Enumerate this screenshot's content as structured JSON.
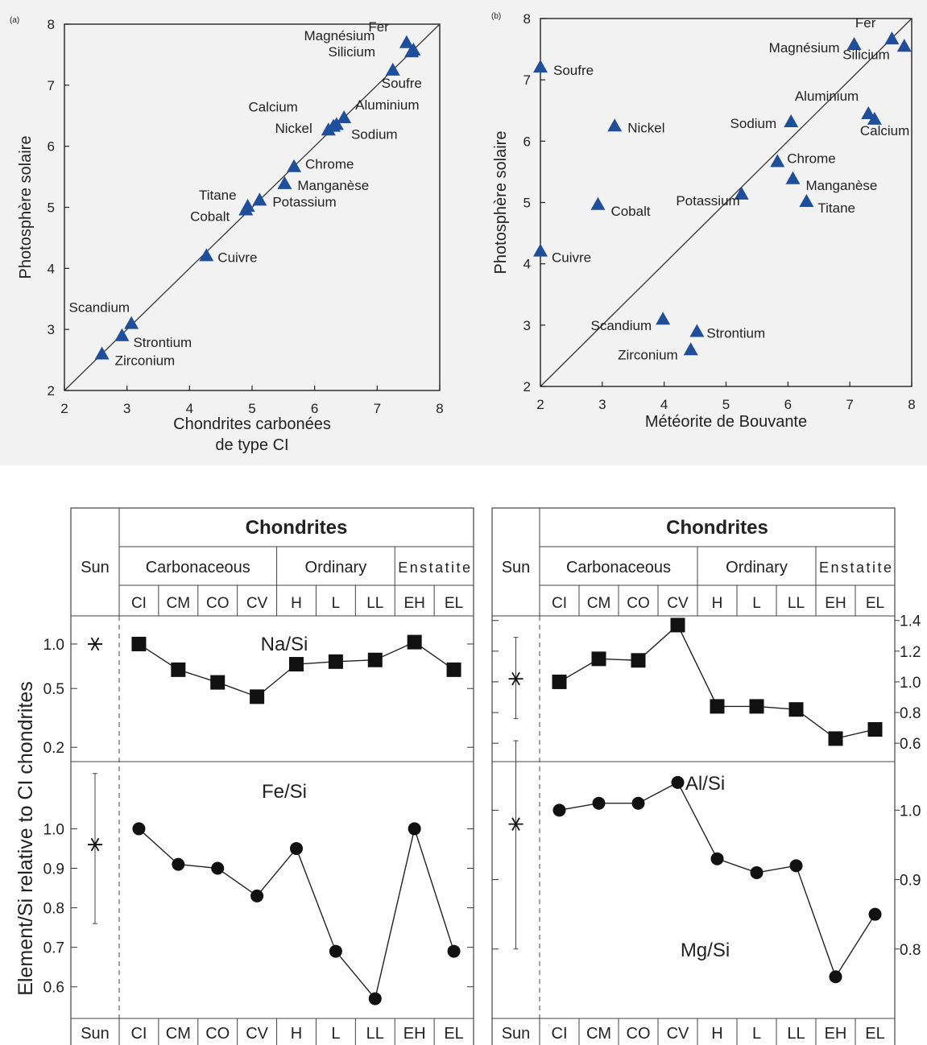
{
  "chart_data": [
    {
      "id": "a",
      "type": "scatter",
      "panel_label": "(a)",
      "xlabel": [
        "Chondrites carbonées",
        "de type CI"
      ],
      "ylabel": "Photosphère solaire",
      "xlim": [
        2,
        8
      ],
      "ylim": [
        2,
        8
      ],
      "xticks": [
        "2",
        "3",
        "4",
        "5",
        "6",
        "7",
        "8"
      ],
      "yticks": [
        "2",
        "3",
        "4",
        "5",
        "6",
        "7",
        "8"
      ],
      "identity_line": true,
      "marker_color": "#1f4e9a",
      "points": [
        {
          "name": "Fer",
          "x": 7.47,
          "y": 7.7
        },
        {
          "name": "Magnésium",
          "x": 7.58,
          "y": 7.58
        },
        {
          "name": "Silicium",
          "x": 7.55,
          "y": 7.55
        },
        {
          "name": "Soufre",
          "x": 7.25,
          "y": 7.25
        },
        {
          "name": "Calcium",
          "x": 6.35,
          "y": 6.36
        },
        {
          "name": "Aluminium",
          "x": 6.47,
          "y": 6.47
        },
        {
          "name": "Nickel",
          "x": 6.22,
          "y": 6.27
        },
        {
          "name": "Sodium",
          "x": 6.3,
          "y": 6.33
        },
        {
          "name": "Chrome",
          "x": 5.67,
          "y": 5.67
        },
        {
          "name": "Manganèse",
          "x": 5.52,
          "y": 5.39
        },
        {
          "name": "Titane",
          "x": 4.93,
          "y": 5.02
        },
        {
          "name": "Cobalt",
          "x": 4.9,
          "y": 4.96
        },
        {
          "name": "Potassium",
          "x": 5.12,
          "y": 5.12
        },
        {
          "name": "Cuivre",
          "x": 4.27,
          "y": 4.21
        },
        {
          "name": "Scandium",
          "x": 3.07,
          "y": 3.1
        },
        {
          "name": "Strontium",
          "x": 2.92,
          "y": 2.9
        },
        {
          "name": "Zirconium",
          "x": 2.6,
          "y": 2.6
        }
      ]
    },
    {
      "id": "b",
      "type": "scatter",
      "panel_label": "(b)",
      "xlabel": [
        "Météorite de Bouvante"
      ],
      "ylabel": "Photosphère solaire",
      "xlim": [
        2,
        8
      ],
      "ylim": [
        2,
        8
      ],
      "xticks": [
        "2",
        "3",
        "4",
        "5",
        "6",
        "7",
        "8"
      ],
      "yticks": [
        "2",
        "3",
        "4",
        "5",
        "6",
        "7",
        "8"
      ],
      "identity_line": true,
      "marker_color": "#1f4e9a",
      "points": [
        {
          "name": "Fer",
          "x": 7.68,
          "y": 7.67
        },
        {
          "name": "Magnésium",
          "x": 7.07,
          "y": 7.58
        },
        {
          "name": "Silicium",
          "x": 7.88,
          "y": 7.55
        },
        {
          "name": "Soufre",
          "x": 2.0,
          "y": 7.21
        },
        {
          "name": "Aluminium",
          "x": 7.3,
          "y": 6.45
        },
        {
          "name": "Calcium",
          "x": 7.4,
          "y": 6.36
        },
        {
          "name": "Nickel",
          "x": 3.2,
          "y": 6.25
        },
        {
          "name": "Sodium",
          "x": 6.05,
          "y": 6.32
        },
        {
          "name": "Chrome",
          "x": 5.83,
          "y": 5.67
        },
        {
          "name": "Manganèse",
          "x": 6.08,
          "y": 5.39
        },
        {
          "name": "Cobalt",
          "x": 2.93,
          "y": 4.97
        },
        {
          "name": "Potassium",
          "x": 5.25,
          "y": 5.14
        },
        {
          "name": "Titane",
          "x": 6.3,
          "y": 5.02
        },
        {
          "name": "Cuivre",
          "x": 2.0,
          "y": 4.21
        },
        {
          "name": "Scandium",
          "x": 3.98,
          "y": 3.1
        },
        {
          "name": "Strontium",
          "x": 4.53,
          "y": 2.9
        },
        {
          "name": "Zirconium",
          "x": 4.43,
          "y": 2.6
        }
      ]
    },
    {
      "id": "left-table",
      "type": "line",
      "header_title": "Chondrites",
      "sun_label": "Sun",
      "groups": [
        "Carbonaceous",
        "Ordinary",
        "Enstatite"
      ],
      "categories": [
        "CI",
        "CM",
        "CO",
        "CV",
        "H",
        "L",
        "LL",
        "EH",
        "EL"
      ],
      "ylabel": "Element/Si relative to CI chondrites",
      "panels": [
        {
          "name": "Na/Si",
          "marker": "square",
          "scale": "log",
          "ylim": [
            0.16,
            1.55
          ],
          "yticks": [
            "0.2",
            "0.5",
            "1.0"
          ],
          "tick_values": [
            0.2,
            0.5,
            1.0
          ],
          "values": [
            1.0,
            0.67,
            0.55,
            0.44,
            0.73,
            0.76,
            0.78,
            1.03,
            0.67
          ],
          "sun": {
            "value": 1.0,
            "err": null
          }
        },
        {
          "name": "Fe/Si",
          "marker": "circle",
          "scale": "linear",
          "ylim": [
            0.52,
            1.17
          ],
          "yticks": [
            "0.6",
            "0.7",
            "0.8",
            "0.9",
            "1.0"
          ],
          "tick_values": [
            0.6,
            0.7,
            0.8,
            0.9,
            1.0
          ],
          "values": [
            1.0,
            0.91,
            0.9,
            0.83,
            0.95,
            0.69,
            0.57,
            1.0,
            0.69
          ],
          "sun": {
            "value": 0.96,
            "err": [
              0.76,
              1.14
            ]
          }
        }
      ],
      "xfooter": [
        "Sun",
        "CI",
        "CM",
        "CO",
        "CV",
        "H",
        "L",
        "LL",
        "EH",
        "EL"
      ]
    },
    {
      "id": "right-table",
      "type": "line",
      "header_title": "Chondrites",
      "sun_label": "Sun",
      "groups": [
        "Carbonaceous",
        "Ordinary",
        "Enstatite"
      ],
      "categories": [
        "CI",
        "CM",
        "CO",
        "CV",
        "H",
        "L",
        "LL",
        "EH",
        "EL"
      ],
      "panels": [
        {
          "name": "Al/Si",
          "marker": "square",
          "scale": "linear",
          "ylim": [
            0.48,
            1.43
          ],
          "yticks": [
            "0.6",
            "0.8",
            "1.0",
            "1.2",
            "1.4"
          ],
          "tick_values": [
            0.6,
            0.8,
            1.0,
            1.2,
            1.4
          ],
          "values": [
            1.0,
            1.15,
            1.14,
            1.37,
            0.84,
            0.84,
            0.82,
            0.63,
            0.69
          ],
          "sun": {
            "value": 1.02,
            "err": [
              0.76,
              1.29
            ]
          }
        },
        {
          "name": "Mg/Si",
          "marker": "circle",
          "scale": "linear",
          "ylim": [
            0.7,
            1.07
          ],
          "yticks": [
            "0.8",
            "0.9",
            "1.0"
          ],
          "tick_values": [
            0.8,
            0.9,
            1.0
          ],
          "values": [
            1.0,
            1.01,
            1.01,
            1.04,
            0.93,
            0.91,
            0.92,
            0.76,
            0.85
          ],
          "sun": {
            "value": 0.98,
            "err": [
              0.8,
              1.1
            ]
          }
        }
      ],
      "xfooter": [
        "Sun",
        "CI",
        "CM",
        "CO",
        "CV",
        "H",
        "L",
        "LL",
        "EH",
        "EL"
      ]
    }
  ]
}
